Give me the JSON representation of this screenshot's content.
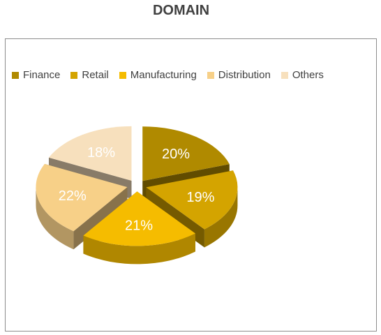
{
  "chart_data": {
    "type": "pie",
    "title": "DOMAIN",
    "categories": [
      "Finance",
      "Retail",
      "Manufacturing",
      "Distribution",
      "Others"
    ],
    "values": [
      20,
      19,
      21,
      22,
      18
    ],
    "labels": [
      "20%",
      "19%",
      "21%",
      "22%",
      "18%"
    ],
    "colors": [
      "#B08A00",
      "#D4A400",
      "#F5BC00",
      "#F7D088",
      "#F7E0BD"
    ],
    "legend_position": "top",
    "style": "3d-exploded"
  }
}
